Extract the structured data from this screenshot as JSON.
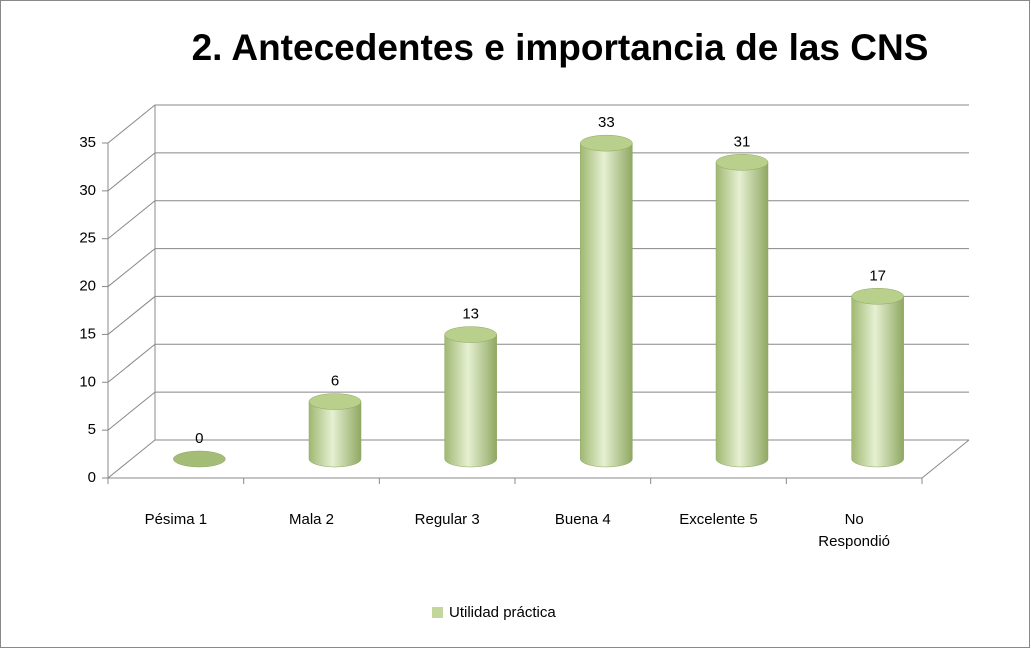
{
  "chart_data": {
    "type": "bar3d",
    "title": "2. Antecedentes e importancia de las CNS",
    "categories": [
      "Pésima 1",
      "Mala 2",
      "Regular 3",
      "Buena 4",
      "Excelente 5",
      "No Respondió"
    ],
    "series": [
      {
        "name": "Utilidad práctica",
        "color": "#c3d69b",
        "values": [
          0,
          6,
          13,
          33,
          31,
          17
        ]
      }
    ],
    "ylim": [
      0,
      35
    ],
    "yticks": [
      0,
      5,
      10,
      15,
      20,
      25,
      30,
      35
    ],
    "grid": true,
    "legend": "bottom"
  }
}
